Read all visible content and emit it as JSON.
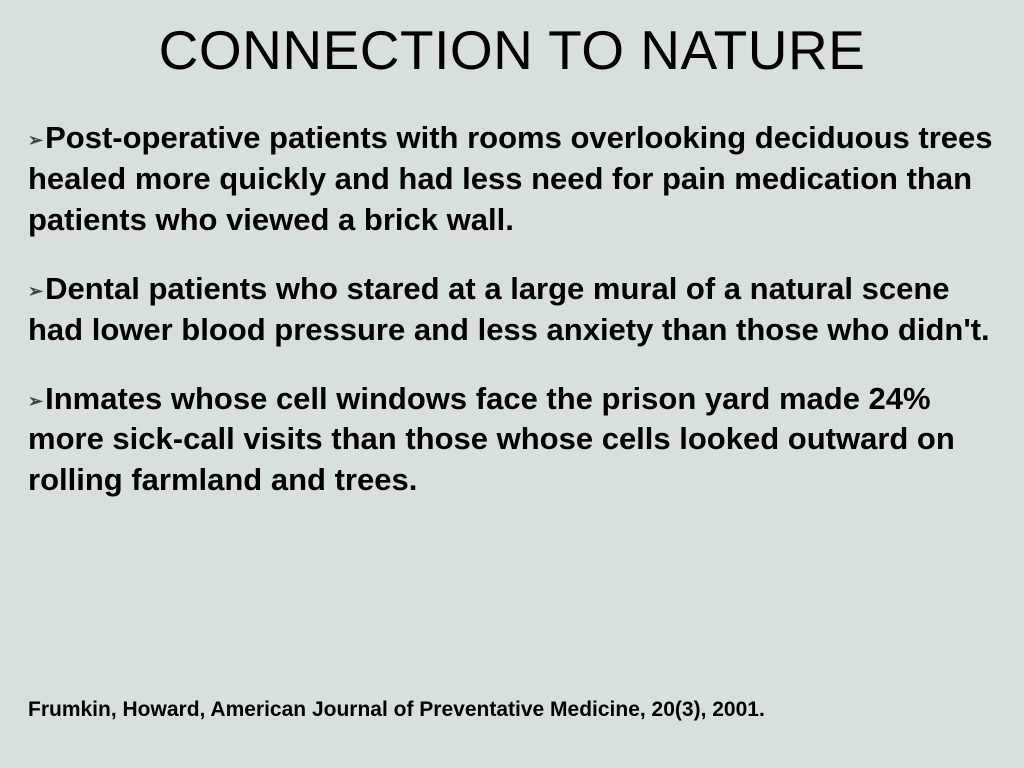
{
  "slide": {
    "background_color": "#d7e0db",
    "text_color": "#000000",
    "marker_color": "#3a473f",
    "title": "CONNECTION TO NATURE",
    "title_fontsize": 55,
    "title_fontweight": 400,
    "body_fontsize": 31,
    "body_fontweight": 700,
    "bullets": [
      "Post-operative patients with rooms overlooking deciduous trees healed more quickly and had less need for pain medication than patients who viewed a brick wall.",
      "Dental patients who stared at a large mural of a natural scene had lower blood pressure and less anxiety than those who didn't.",
      "Inmates whose cell windows face the prison yard made 24% more sick-call visits than those whose cells looked outward on rolling farmland and trees."
    ],
    "bullet_marker": "➢",
    "citation": "Frumkin, Howard, American Journal of Preventative Medicine, 20(3), 2001.",
    "citation_fontsize": 21
  }
}
